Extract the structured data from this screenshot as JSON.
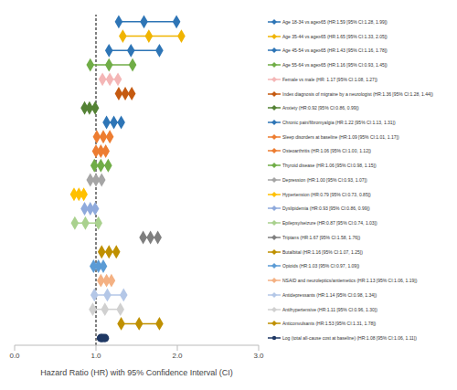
{
  "chart_data": {
    "type": "forest",
    "xlabel": "Hazard Ratio (HR) with 95% Confidence Interval (CI)",
    "xlim": [
      0,
      3
    ],
    "xticks": [
      {
        "value": 0,
        "label": "0.0"
      },
      {
        "value": 1,
        "label": "1.0"
      },
      {
        "value": 2,
        "label": "2.0"
      },
      {
        "value": 3,
        "label": "3.0"
      }
    ],
    "grid": false,
    "reference_x": 1,
    "series": [
      {
        "name": "Age 18-34 vs age≥65 (HR:1.59 [95% CI:1.28, 1.99])",
        "color": "#2e75b6",
        "marker": "diamond",
        "value": 1.59,
        "lower": 1.28,
        "upper": 1.99
      },
      {
        "name": "Age 35-44 vs age≥65 (HR:1.65 [95% CI:1.33, 2.05])",
        "color": "#f0b400",
        "marker": "diamond",
        "value": 1.65,
        "lower": 1.33,
        "upper": 2.05
      },
      {
        "name": "Age 45-54 vs age≥65 (HR:1.43 [95% CI:1.16, 1.78])",
        "color": "#2e75b6",
        "marker": "diamond",
        "value": 1.43,
        "lower": 1.16,
        "upper": 1.78
      },
      {
        "name": "Age 55-64 vs age≥65 (HR:1.16 [95% CI:0.93, 1.45])",
        "color": "#70ad47",
        "marker": "diamond",
        "value": 1.16,
        "lower": 0.93,
        "upper": 1.45
      },
      {
        "name": "Female vs male (HR: 1.17 [95% CI:1.08, 1.27])",
        "color": "#f4b6b6",
        "marker": "diamond",
        "value": 1.17,
        "lower": 1.08,
        "upper": 1.27
      },
      {
        "name": "Index diagnosis of migraine by a neurologist (HR:1.36 [95% CI:1.28, 1.44])",
        "color": "#c55a11",
        "marker": "diamond",
        "value": 1.36,
        "lower": 1.28,
        "upper": 1.44
      },
      {
        "name": "Anxiety (HR:0.92 [95% CI:0.86, 0.99])",
        "color": "#548235",
        "marker": "diamond",
        "value": 0.92,
        "lower": 0.86,
        "upper": 0.99
      },
      {
        "name": "Chronic pain/fibromyalgia (HR:1.22 [95% CI:1.13, 1.31])",
        "color": "#2e75b6",
        "marker": "diamond",
        "value": 1.22,
        "lower": 1.13,
        "upper": 1.31
      },
      {
        "name": "Sleep disorders at baseline (HR:1.09 [95% CI:1.01, 1.17])",
        "color": "#ed7d31",
        "marker": "diamond",
        "value": 1.09,
        "lower": 1.01,
        "upper": 1.17
      },
      {
        "name": "Osteoarthritis (HR:1.06 [95% CI:1.00, 1.12])",
        "color": "#ed7d31",
        "marker": "diamond",
        "value": 1.06,
        "lower": 1.0,
        "upper": 1.12
      },
      {
        "name": "Thyroid disease (HR:1.06 [95% CI:0.98, 1.15])",
        "color": "#70ad47",
        "marker": "diamond",
        "value": 1.06,
        "lower": 0.98,
        "upper": 1.15
      },
      {
        "name": "Depression (HR:1.00 [95% CI:0.93, 1.07])",
        "color": "#a5a5a5",
        "marker": "diamond",
        "value": 1.0,
        "lower": 0.93,
        "upper": 1.07
      },
      {
        "name": "Hypertension (HR:0.79 [95% CI:0.73, 0.85])",
        "color": "#ffc000",
        "marker": "diamond",
        "value": 0.79,
        "lower": 0.73,
        "upper": 0.85
      },
      {
        "name": "Dyslipidemia (HR:0.93 [95% CI:0.86, 0.99])",
        "color": "#8faadc",
        "marker": "diamond",
        "value": 0.93,
        "lower": 0.86,
        "upper": 0.99
      },
      {
        "name": "Epilepsy/seizure (HR:0.87 [95% CI:0.74, 1.03])",
        "color": "#a9d18e",
        "marker": "diamond",
        "value": 0.87,
        "lower": 0.74,
        "upper": 1.03
      },
      {
        "name": "Triptans (HR:1.67 [95% CI:1.58, 1.76])",
        "color": "#7f7f7f",
        "marker": "diamond",
        "value": 1.67,
        "lower": 1.58,
        "upper": 1.76
      },
      {
        "name": "Butalbital (HR:1.16 [95% CI:1.07, 1.25])",
        "color": "#bf9000",
        "marker": "diamond",
        "value": 1.16,
        "lower": 1.07,
        "upper": 1.25
      },
      {
        "name": "Opioids (HR:1.03 [95% CI:0.97, 1.09])",
        "color": "#5b9bd5",
        "marker": "diamond",
        "value": 1.03,
        "lower": 0.97,
        "upper": 1.09
      },
      {
        "name": "NSAID and neuroleptics/antiemetics (HR:1.13 [95% CI:1.06, 1.19])",
        "color": "#f4b183",
        "marker": "diamond",
        "value": 1.13,
        "lower": 1.06,
        "upper": 1.19
      },
      {
        "name": "Antidepressants (HR:1.14 [95% CI:0.98, 1.34])",
        "color": "#b4c7e7",
        "marker": "diamond",
        "value": 1.14,
        "lower": 0.98,
        "upper": 1.34
      },
      {
        "name": "Antihypertensive (HR:1.11 [95% CI:0.96, 1.30])",
        "color": "#d0d0d0",
        "marker": "diamond",
        "value": 1.11,
        "lower": 0.96,
        "upper": 1.3
      },
      {
        "name": "Anticonvulsants (HR:1.53 [95% CI:1.31, 1.78])",
        "color": "#bf9000",
        "marker": "diamond",
        "value": 1.53,
        "lower": 1.31,
        "upper": 1.78
      },
      {
        "name": "Log (total all-cause cost at baseline) (HR:1.08 [95% CI:1.06, 1.11])",
        "color": "#1f3864",
        "marker": "circle",
        "value": 1.08,
        "lower": 1.06,
        "upper": 1.11
      }
    ]
  }
}
